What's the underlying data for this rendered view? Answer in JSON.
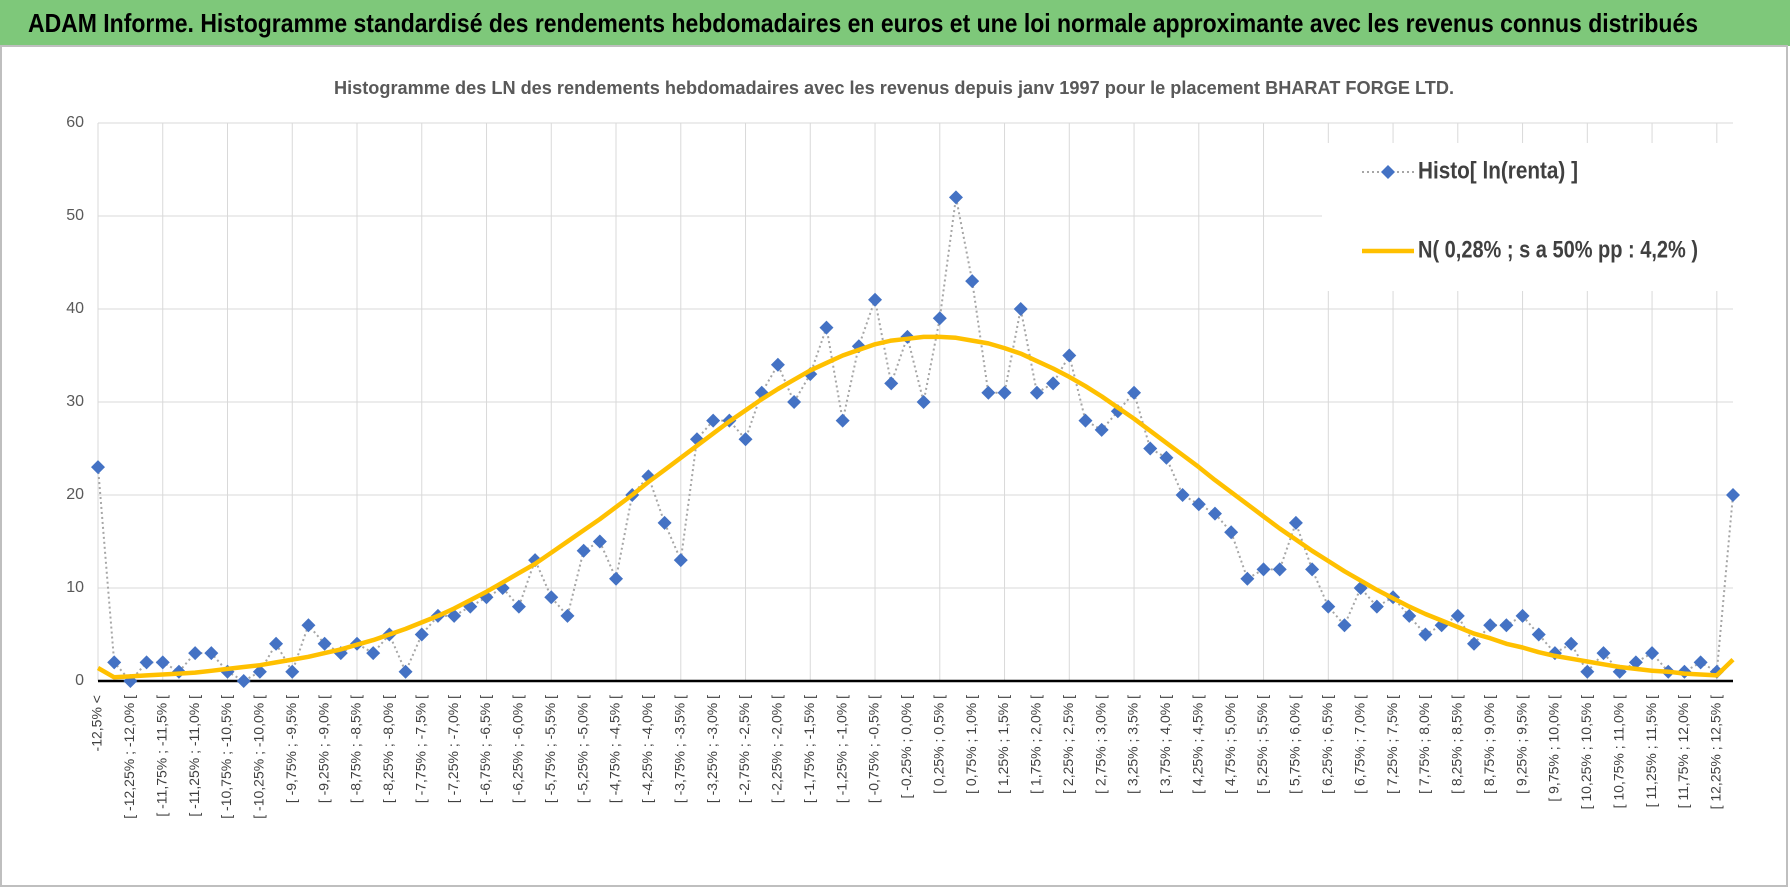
{
  "banner": "ADAM Informe. Histogramme standardisé des rendements hebdomadaires en euros et une loi normale approximante avec les revenus connus distribués",
  "chart_data": {
    "type": "line",
    "title": "Histogramme des LN des rendements hebdomadaires avec les revenus depuis janv 1997 pour le placement BHARAT FORGE LTD.",
    "categories": [
      "-12,5% <",
      null,
      "[ -12,25% ; -12,0% [",
      null,
      "[ -11,75% ; -11,5% [",
      null,
      "[ -11,25% ; -11,0% [",
      null,
      "[ -10,75% ; -10,5% [",
      null,
      "[ -10,25% ; -10,0% [",
      null,
      "[ -9,75% ; -9,5% [",
      null,
      "[ -9,25% ; -9,0% [",
      null,
      "[ -8,75% ; -8,5% [",
      null,
      "[ -8,25% ; -8,0% [",
      null,
      "[ -7,75% ; -7,5% [",
      null,
      "[ -7,25% ; -7,0% [",
      null,
      "[ -6,75% ; -6,5% [",
      null,
      "[ -6,25% ; -6,0% [",
      null,
      "[ -5,75% ; -5,5% [",
      null,
      "[ -5,25% ; -5,0% [",
      null,
      "[ -4,75% ; -4,5% [",
      null,
      "[ -4,25% ; -4,0% [",
      null,
      "[ -3,75% ; -3,5% [",
      null,
      "[ -3,25% ; -3,0% [",
      null,
      "[ -2,75% ; -2,5% [",
      null,
      "[ -2,25% ; -2,0% [",
      null,
      "[ -1,75% ; -1,5% [",
      null,
      "[ -1,25% ; -1,0% [",
      null,
      "[ -0,75% ; -0,5% [",
      null,
      "[ -0,25% ; 0,0% [",
      null,
      "[ 0,25% ; 0,5% [",
      null,
      "[ 0,75% ; 1,0% [",
      null,
      "[ 1,25% ; 1,5% [",
      null,
      "[ 1,75% ; 2,0% [",
      null,
      "[ 2,25% ; 2,5% [",
      null,
      "[ 2,75% ; 3,0% [",
      null,
      "[ 3,25% ; 3,5% [",
      null,
      "[ 3,75% ; 4,0% [",
      null,
      "[ 4,25% ; 4,5% [",
      null,
      "[ 4,75% ; 5,0% [",
      null,
      "[ 5,25% ; 5,5% [",
      null,
      "[ 5,75% ; 6,0% [",
      null,
      "[ 6,25% ; 6,5% [",
      null,
      "[ 6,75% ; 7,0% [",
      null,
      "[ 7,25% ; 7,5% [",
      null,
      "[ 7,75% ; 8,0% [",
      null,
      "[ 8,25% ; 8,5% [",
      null,
      "[ 8,75% ; 9,0% [",
      null,
      "[ 9,25% ; 9,5% [",
      null,
      "[ 9,75% ; 10,0% [",
      null,
      "[ 10,25% ; 10,5% [",
      null,
      "[ 10,75% ; 11,0% [",
      null,
      "[ 11,25% ; 11,5% [",
      null,
      "[ 11,75% ; 12,0% [",
      null,
      "[ 12,25% ; 12,5% [",
      null
    ],
    "series": [
      {
        "name": "Histo[ ln(renta) ]",
        "color": "#4472c4",
        "line_color": "#a6a6a6",
        "dashed": true,
        "marker": "diamond",
        "values": [
          23,
          2,
          0,
          2,
          2,
          1,
          3,
          3,
          1,
          0,
          1,
          4,
          1,
          6,
          4,
          3,
          4,
          3,
          5,
          1,
          5,
          7,
          7,
          8,
          9,
          10,
          8,
          13,
          9,
          7,
          14,
          15,
          11,
          20,
          22,
          17,
          13,
          26,
          28,
          28,
          26,
          31,
          34,
          30,
          33,
          38,
          28,
          36,
          41,
          32,
          37,
          30,
          39,
          52,
          43,
          31,
          31,
          40,
          31,
          32,
          35,
          28,
          27,
          29,
          31,
          25,
          24,
          20,
          19,
          18,
          16,
          11,
          12,
          12,
          17,
          12,
          8,
          6,
          10,
          8,
          9,
          7,
          5,
          6,
          7,
          4,
          6,
          6,
          7,
          5,
          3,
          4,
          1,
          3,
          1,
          2,
          3,
          1,
          1,
          2,
          1,
          20
        ]
      },
      {
        "name": "N( 0,28% ; s a 50% pp : 4,2% )",
        "color": "#ffc000",
        "line_color": "#ffc000",
        "dashed": false,
        "values": [
          1.4,
          0.4,
          0.5,
          0.6,
          0.7,
          0.8,
          0.9,
          1.1,
          1.3,
          1.5,
          1.7,
          2.0,
          2.3,
          2.6,
          3.0,
          3.4,
          3.9,
          4.4,
          5.0,
          5.6,
          6.3,
          7.0,
          7.8,
          8.7,
          9.6,
          10.6,
          11.6,
          12.6,
          13.8,
          15.0,
          16.2,
          17.4,
          18.7,
          20.0,
          21.4,
          22.7,
          24.0,
          25.3,
          26.6,
          27.9,
          29.1,
          30.3,
          31.4,
          32.4,
          33.4,
          34.2,
          35.0,
          35.6,
          36.2,
          36.6,
          36.8,
          37.0,
          37.0,
          36.9,
          36.6,
          36.3,
          35.8,
          35.2,
          34.4,
          33.6,
          32.7,
          31.7,
          30.6,
          29.4,
          28.2,
          26.9,
          25.6,
          24.3,
          23.0,
          21.6,
          20.3,
          19.0,
          17.7,
          16.4,
          15.2,
          14.0,
          12.9,
          11.8,
          10.8,
          9.8,
          8.9,
          8.0,
          7.2,
          6.5,
          5.8,
          5.1,
          4.6,
          4.0,
          3.6,
          3.1,
          2.7,
          2.4,
          2.1,
          1.8,
          1.5,
          1.3,
          1.1,
          1.0,
          0.8,
          0.7,
          0.6,
          2.3
        ]
      }
    ],
    "ylim": [
      0,
      60
    ],
    "yticks": [
      0,
      10,
      20,
      30,
      40,
      50,
      60
    ],
    "grid": true,
    "legend": "top-right"
  }
}
